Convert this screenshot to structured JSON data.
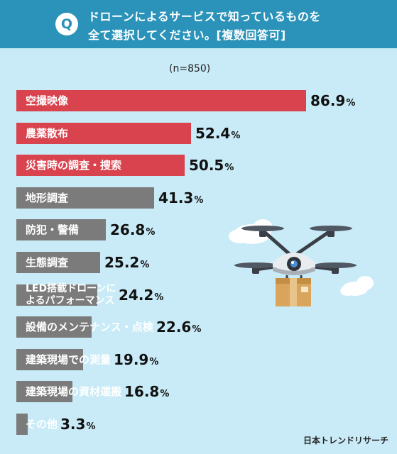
{
  "question": {
    "badge": "Q",
    "line1": "ドローンによるサービスで知っているものを",
    "line2": "全て選択してください。[複数回答可]"
  },
  "sample_size": "(n=850)",
  "credit": "日本トレンドリサーチ",
  "colors": {
    "header": "#2b93b9",
    "background": "#c8ebf7",
    "highlight_bar": "#d9434e",
    "normal_bar": "#7b7b7b"
  },
  "chart_data": {
    "type": "bar",
    "orientation": "horizontal",
    "unit": "%",
    "xlim": [
      0,
      100
    ],
    "grid": false,
    "categories": [
      "空撮映像",
      "農薬散布",
      "災害時の調査・捜索",
      "地形調査",
      "防犯・警備",
      "生態調査",
      "LED搭載ドローンによるパフォーマンス",
      "設備のメンテナンス・点検",
      "建築現場での測量",
      "建築現場の資材運搬",
      "その他"
    ],
    "labels": [
      [
        "空撮映像"
      ],
      [
        "農薬散布"
      ],
      [
        "災害時の調査・捜索"
      ],
      [
        "地形調査"
      ],
      [
        "防犯・警備"
      ],
      [
        "生態調査"
      ],
      [
        "LED搭載ドローンに",
        "よるパフォーマンス"
      ],
      [
        "設備のメンテナンス・点検"
      ],
      [
        "建築現場での測量"
      ],
      [
        "建築現場の資材運搬"
      ],
      [
        "その他"
      ]
    ],
    "values": [
      86.9,
      52.4,
      50.5,
      41.3,
      26.8,
      25.2,
      24.2,
      22.6,
      19.9,
      16.8,
      3.3
    ],
    "value_labels": [
      "86.9",
      "52.4",
      "50.5",
      "41.3",
      "26.8",
      "25.2",
      "24.2",
      "22.6",
      "19.9",
      "16.8",
      "3.3"
    ],
    "highlight": [
      true,
      true,
      true,
      false,
      false,
      false,
      false,
      false,
      false,
      false,
      false
    ]
  }
}
